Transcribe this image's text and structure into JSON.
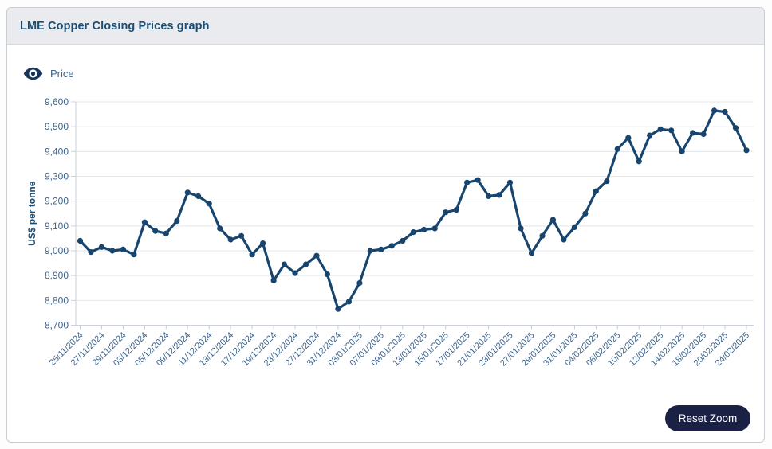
{
  "header": {
    "title": "LME Copper Closing Prices graph"
  },
  "legend": {
    "series_label": "Price",
    "icon": "eye-icon"
  },
  "controls": {
    "reset_zoom_label": "Reset Zoom"
  },
  "colors": {
    "line": "#17456e",
    "marker": "#17456e",
    "grid": "#e2e6ea",
    "axis": "#c9d0d7",
    "tick_text": "#3d648f",
    "axis_title": "#1d4e74",
    "header_bg": "#e9ebee",
    "title_text": "#1a4f75",
    "button_bg": "#1b2145"
  },
  "chart_data": {
    "type": "line",
    "title": "LME Copper Closing Prices",
    "ylabel": "US$ per tonne",
    "xlabel": "",
    "ylim": [
      8700,
      9600
    ],
    "ytick_step": 100,
    "grid": true,
    "legend_position": "top-left",
    "marker": "circle",
    "x_tick_every": 2,
    "x": [
      "25/11/2024",
      "26/11/2024",
      "27/11/2024",
      "28/11/2024",
      "29/11/2024",
      "02/12/2024",
      "03/12/2024",
      "04/12/2024",
      "05/12/2024",
      "06/12/2024",
      "09/12/2024",
      "10/12/2024",
      "11/12/2024",
      "12/12/2024",
      "13/12/2024",
      "16/12/2024",
      "17/12/2024",
      "18/12/2024",
      "19/12/2024",
      "20/12/2024",
      "23/12/2024",
      "24/12/2024",
      "27/12/2024",
      "30/12/2024",
      "31/12/2024",
      "02/01/2025",
      "03/01/2025",
      "06/01/2025",
      "07/01/2025",
      "08/01/2025",
      "09/01/2025",
      "10/01/2025",
      "13/01/2025",
      "14/01/2025",
      "15/01/2025",
      "16/01/2025",
      "17/01/2025",
      "20/01/2025",
      "21/01/2025",
      "22/01/2025",
      "23/01/2025",
      "24/01/2025",
      "27/01/2025",
      "28/01/2025",
      "29/01/2025",
      "30/01/2025",
      "31/01/2025",
      "03/02/2025",
      "04/02/2025",
      "05/02/2025",
      "06/02/2025",
      "07/02/2025",
      "10/02/2025",
      "11/02/2025",
      "12/02/2025",
      "13/02/2025",
      "14/02/2025",
      "17/02/2025",
      "18/02/2025",
      "19/02/2025",
      "20/02/2025",
      "21/02/2025",
      "24/02/2025"
    ],
    "series": [
      {
        "name": "Price",
        "values": [
          9040,
          8995,
          9015,
          9000,
          9005,
          8985,
          9115,
          9080,
          9070,
          9120,
          9235,
          9220,
          9190,
          9090,
          9045,
          9060,
          8985,
          9030,
          8880,
          8945,
          8910,
          8945,
          8980,
          8905,
          8765,
          8795,
          8870,
          9000,
          9005,
          9020,
          9040,
          9075,
          9085,
          9090,
          9155,
          9165,
          9275,
          9285,
          9220,
          9225,
          9275,
          9090,
          8990,
          9060,
          9125,
          9045,
          9095,
          9150,
          9240,
          9280,
          9410,
          9455,
          9360,
          9465,
          9490,
          9485,
          9400,
          9475,
          9470,
          9565,
          9560,
          9495,
          9405
        ]
      }
    ]
  }
}
